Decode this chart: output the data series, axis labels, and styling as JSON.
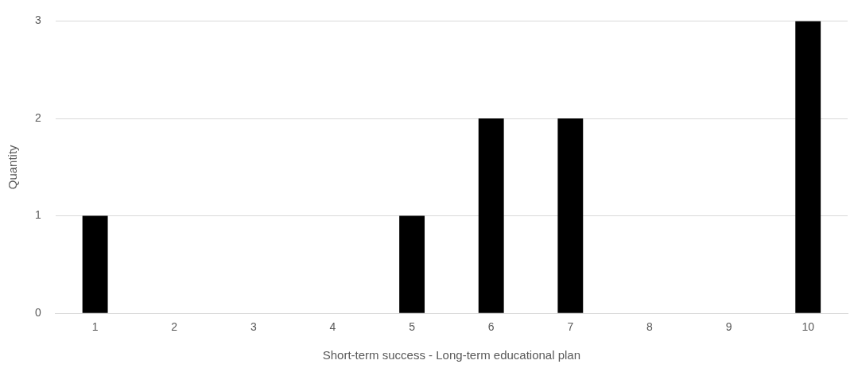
{
  "chart_data": {
    "type": "bar",
    "xlabel": "Short-term success - Long-term educational plan",
    "ylabel": "Quantity",
    "categories": [
      "1",
      "2",
      "3",
      "4",
      "5",
      "6",
      "7",
      "8",
      "9",
      "10"
    ],
    "values": [
      1,
      0,
      0,
      0,
      1,
      2,
      2,
      0,
      0,
      3
    ],
    "color": "#000000",
    "ylim": [
      0,
      3
    ],
    "yticks": [
      0,
      1,
      2,
      3
    ],
    "grid": "y",
    "legend": false
  }
}
